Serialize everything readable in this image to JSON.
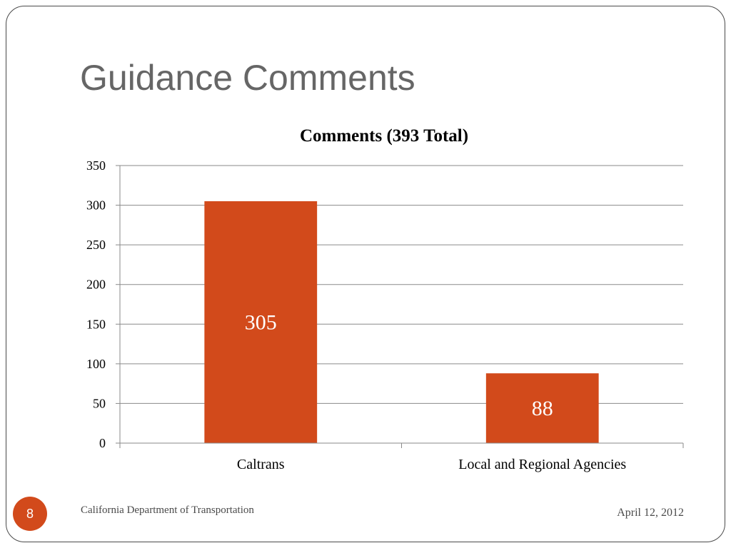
{
  "slide": {
    "title": "Guidance Comments",
    "footer_left": "California Department of Transportation",
    "footer_right": "April 12, 2012",
    "page_number": "8",
    "accent_color": "#d24a1b"
  },
  "chart_data": {
    "type": "bar",
    "title": "Comments (393 Total)",
    "categories": [
      "Caltrans",
      "Local and Regional Agencies"
    ],
    "values": [
      305,
      88
    ],
    "data_labels": [
      "305",
      "88"
    ],
    "xlabel": "",
    "ylabel": "",
    "ylim": [
      0,
      350
    ],
    "yticks": [
      0,
      50,
      100,
      150,
      200,
      250,
      300,
      350
    ],
    "grid": true,
    "legend": "none",
    "bar_color": "#d24a1b"
  }
}
